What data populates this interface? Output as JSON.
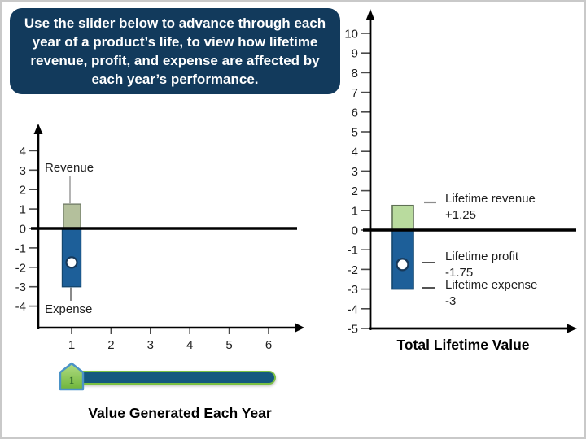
{
  "instruction_box": {
    "text": "Use the slider below to advance through each year of a product’s life, to view how lifetime revenue, profit, and expense are affected by each year’s performance.",
    "bg": "#123a5c",
    "text_color": "#ffffff"
  },
  "chart_data": [
    {
      "type": "bar",
      "title": "Value Generated Each Year",
      "x_ticks": [
        1,
        2,
        3,
        4,
        5,
        6
      ],
      "y_ticks": [
        4,
        3,
        2,
        1,
        0,
        -1,
        -2,
        -3,
        -4
      ],
      "ylim": [
        -4.5,
        4.8
      ],
      "xlim": [
        0,
        6.6
      ],
      "grid": false,
      "series": [
        {
          "name": "Revenue",
          "x": 1,
          "value": 1.25,
          "color": "#b4c09c",
          "border": "#75806b"
        },
        {
          "name": "Expense",
          "x": 1,
          "value": -3,
          "color": "#1d5f99",
          "border": "#14476f"
        },
        {
          "name": "Profit",
          "x": 1,
          "value": -1.75,
          "marker": "white-dot"
        }
      ]
    },
    {
      "type": "bar",
      "title": "Total Lifetime Value",
      "y_ticks": [
        10,
        9,
        8,
        7,
        6,
        5,
        4,
        3,
        2,
        1,
        0,
        -1,
        -2,
        -3,
        -4,
        -5
      ],
      "ylim": [
        -5,
        10.8
      ],
      "grid": false,
      "series": [
        {
          "name": "Lifetime revenue",
          "value": 1.25,
          "color": "#b9db9e",
          "border": "#5f7055"
        },
        {
          "name": "Lifetime expense",
          "value": -3,
          "color": "#1d5f99",
          "border": "#14476f"
        },
        {
          "name": "Lifetime profit",
          "value": -1.75,
          "marker": "white-dot"
        }
      ],
      "annotations": [
        {
          "line1": "Lifetime revenue",
          "line2": "+1.25"
        },
        {
          "line1": "Lifetime profit",
          "line2": "-1.75"
        },
        {
          "line1": "Lifetime expense",
          "line2": "-3"
        }
      ]
    }
  ],
  "slider": {
    "min": 1,
    "max": 6,
    "value": 1,
    "handle_label": "1",
    "track_color": "#15597f",
    "track_border": "#7cc143",
    "handle_fill_top": "#b2dd85",
    "handle_fill_bottom": "#6fb53a",
    "handle_border": "#4b93c7"
  },
  "styles": {
    "axis_color": "#000000",
    "tick_color": "#4a4a4a",
    "dot_fill": "#ffffff",
    "dot_border": "#17395a",
    "leader_gray": "#8c8c8c",
    "leader_dark": "#1a1a1a"
  }
}
